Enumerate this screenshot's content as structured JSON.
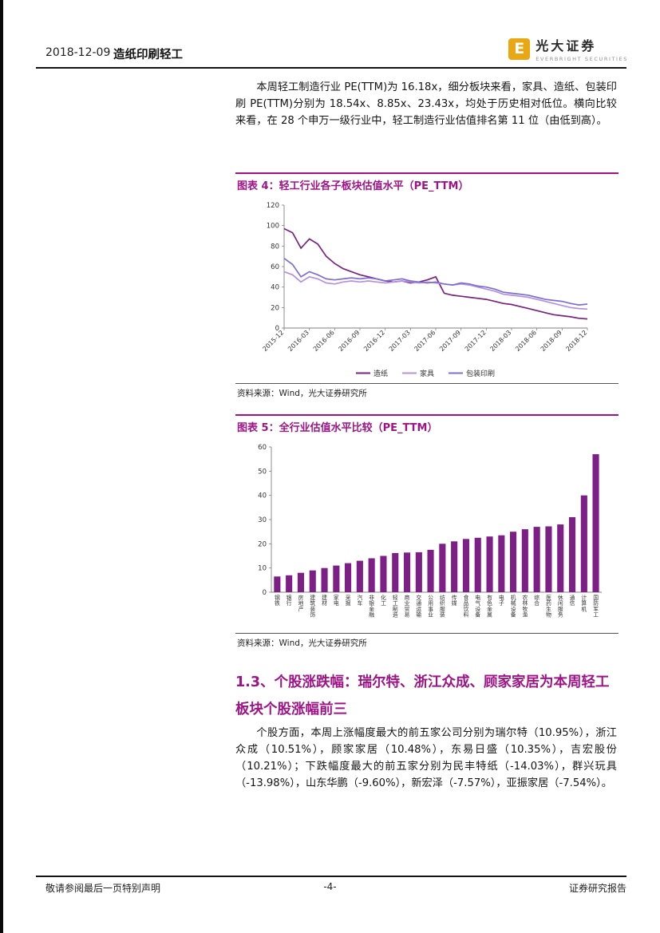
{
  "header": {
    "date": "2018-12-09",
    "doc_title": "造纸印刷轻工",
    "brand_name": "光大证券",
    "brand_sub": "EVERBRIGHT SECURITIES",
    "brand_mark": "E"
  },
  "paragraph1": "本周轻工制造行业 PE(TTM)为 16.18x，细分板块来看，家具、造纸、包装印刷 PE(TTM)分别为 18.54x、8.85x、23.43x，均处于历史相对低位。横向比较来看，在 28 个申万一级行业中，轻工制造行业估值排名第 11 位（由低到高）。",
  "figure4": {
    "title": "图表 4：轻工行业各子板块估值水平（PE_TTM）",
    "source": "资料来源：Wind，光大证券研究所"
  },
  "figure5": {
    "title": "图表 5：全行业估值水平比较（PE_TTM）",
    "source": "资料来源：Wind，光大证券研究所"
  },
  "section_heading": "1.3、个股涨跌幅：瑞尔特、浙江众成、顾家家居为本周轻工板块个股涨幅前三",
  "paragraph2": "个股方面，本周上涨幅度最大的前五家公司分别为瑞尔特（10.95%），浙江众成（10.51%），顾家家居（10.48%），东易日盛（10.35%），吉宏股份（10.21%）；下跌幅度最大的前五家分别为民丰特纸（-14.03%），群兴玩具（-13.98%），山东华鹏（-9.60%），新宏泽（-7.57%），亚振家居（-7.54%）。",
  "footer": {
    "left": "敬请参阅最后一页特别声明",
    "center": "-4-",
    "right": "证券研究报告"
  },
  "colors": {
    "accent": "#9e1487",
    "paper_line": "#7b2182",
    "furniture_line": "#b491dd",
    "packaging_line": "#7c6fd6",
    "bar": "#7d1f87"
  },
  "chart_data": [
    {
      "type": "line",
      "title": "轻工行业各子板块估值水平（PE_TTM）",
      "ylim": [
        0,
        120
      ],
      "y_ticks": [
        0,
        20,
        40,
        60,
        80,
        100,
        120
      ],
      "n_points": 37,
      "tick_every": 3,
      "x_tick_labels": [
        "2015-12",
        "2016-03",
        "2016-06",
        "2016-09",
        "2016-12",
        "2017-03",
        "2017-06",
        "2017-09",
        "2017-12",
        "2018-03",
        "2018-06",
        "2018-09",
        "2018-12"
      ],
      "legend_position": "bottom",
      "grid": false,
      "series": [
        {
          "name": "造纸",
          "color": "#7b2182",
          "values": [
            97,
            93,
            78,
            87,
            82,
            70,
            63,
            58,
            55,
            52,
            50,
            48,
            46,
            45,
            46,
            44,
            45,
            47,
            50,
            34,
            32,
            31,
            30,
            29,
            28,
            26,
            24,
            23,
            21,
            19,
            17,
            15,
            13,
            12,
            11,
            9.5,
            8.9
          ]
        },
        {
          "name": "家具",
          "color": "#b491dd",
          "values": [
            55,
            52,
            45,
            50,
            48,
            44,
            43,
            45,
            46,
            45,
            46,
            45,
            44,
            45,
            46,
            45,
            44,
            45,
            44,
            43,
            42,
            43,
            42,
            40,
            38,
            36,
            33,
            32,
            31,
            30,
            28,
            26,
            24,
            22,
            20,
            19,
            18.5
          ]
        },
        {
          "name": "包装印刷",
          "color": "#7c6fd6",
          "values": [
            68,
            62,
            50,
            55,
            52,
            48,
            47,
            48,
            49,
            48,
            49,
            48,
            46,
            47,
            48,
            46,
            45,
            44,
            45,
            43,
            42,
            44,
            43,
            41,
            40,
            38,
            35,
            34,
            33,
            32,
            30,
            28,
            27,
            26,
            24,
            22.5,
            23.4
          ]
        }
      ]
    },
    {
      "type": "bar",
      "title": "全行业估值水平比较（PE_TTM）",
      "ylim": [
        0,
        60
      ],
      "y_ticks": [
        0,
        10,
        20,
        30,
        40,
        50,
        60
      ],
      "bar_color": "#7d1f87",
      "grid": false,
      "categories": [
        "钢铁",
        "银行",
        "房地产",
        "建筑装饰",
        "建材",
        "家电",
        "采掘",
        "汽车",
        "非银金融",
        "化工",
        "轻工制造",
        "商业贸易",
        "交通运输",
        "公用事业",
        "纺织服装",
        "传媒",
        "食品饮料",
        "电气设备",
        "有色金属",
        "电子",
        "机械设备",
        "农林牧渔",
        "综合",
        "医药生物",
        "休闲服务",
        "通信",
        "计算机",
        "国防军工"
      ],
      "values": [
        6.5,
        7,
        8,
        9,
        10,
        11,
        12,
        13,
        14,
        15,
        16.2,
        16.4,
        16.5,
        17.5,
        20,
        21,
        22,
        22.5,
        23,
        23.5,
        25,
        26,
        27,
        27.2,
        28,
        31,
        40,
        57
      ]
    }
  ]
}
